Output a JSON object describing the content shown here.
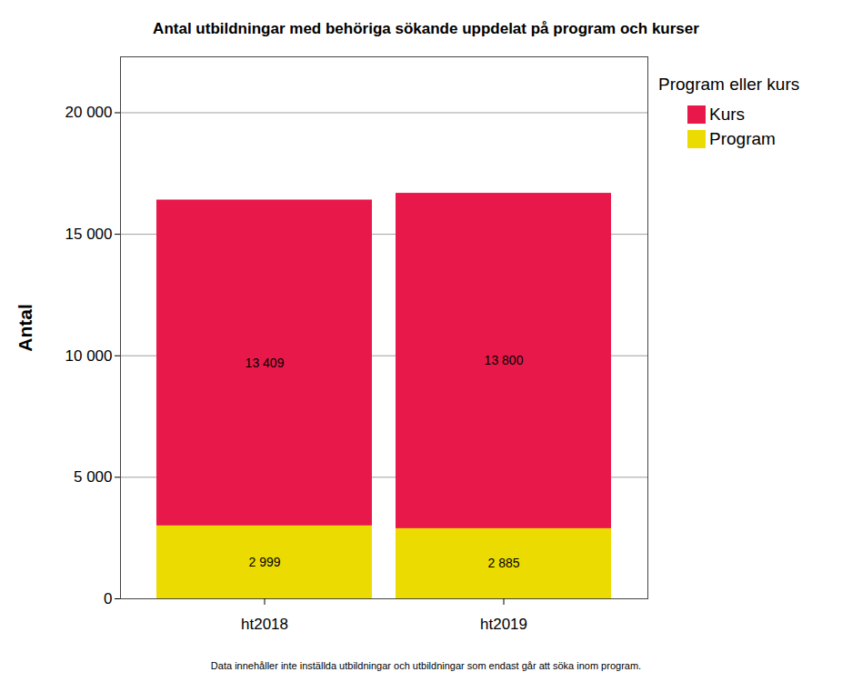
{
  "chart_data": {
    "type": "bar",
    "stacked": true,
    "title": "Antal utbildningar med behöriga sökande uppdelat på program och kurser",
    "ylabel": "Antal",
    "legend_title": "Program eller kurs",
    "caption": "Data innehåller inte inställda utbildningar och utbildningar som endast går att söka inom program.",
    "categories": [
      "ht2018",
      "ht2019"
    ],
    "series": [
      {
        "name": "Kurs",
        "color": "#e8194a",
        "values": [
          13409,
          13800
        ],
        "value_labels": [
          "13 409",
          "13 800"
        ]
      },
      {
        "name": "Program",
        "color": "#ecdb00",
        "values": [
          2999,
          2885
        ],
        "value_labels": [
          "2 999",
          "2 885"
        ]
      }
    ],
    "ylim": [
      0,
      22300
    ],
    "yticks": [
      0,
      {
        "value": 5000,
        "label": "5 000"
      },
      {
        "value": 10000,
        "label": "10 000"
      },
      {
        "value": 15000,
        "label": "15 000"
      },
      {
        "value": 20000,
        "label": "20 000"
      }
    ],
    "grid": true,
    "legend": "top-right",
    "data_labels": true
  }
}
